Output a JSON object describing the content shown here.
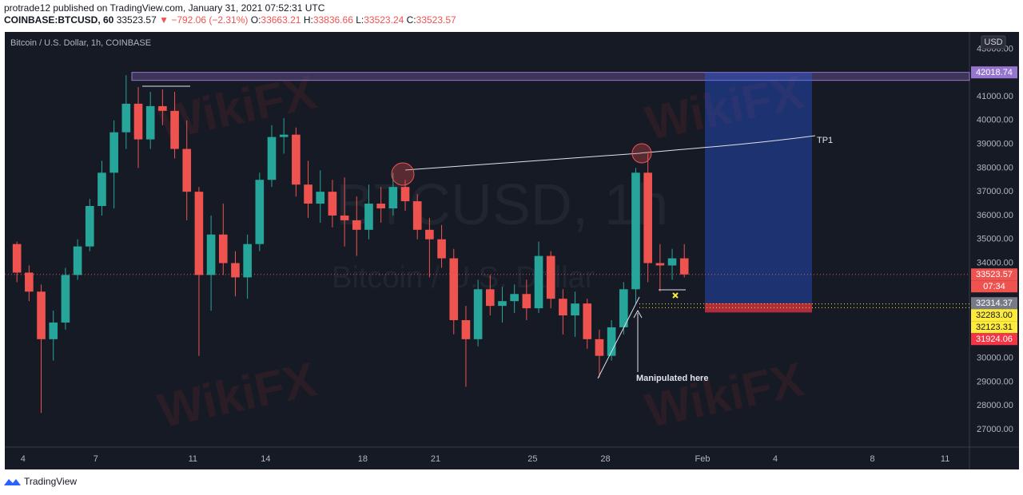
{
  "header": {
    "published": "protrade12 published on TradingView.com, January 31, 2021 07:52:31 UTC",
    "symbol": "COINBASE:BTCUSD, 60",
    "last": "33523.57",
    "change": "▼ −792.06 (−2.31%)",
    "ohlc": [
      {
        "label": "O:",
        "value": "33663.21"
      },
      {
        "label": "H:",
        "value": "33836.66"
      },
      {
        "label": "L:",
        "value": "33523.24"
      },
      {
        "label": "C:",
        "value": "33523.57"
      }
    ]
  },
  "footer": {
    "brand": "TradingView"
  },
  "watermarks": {
    "brand": "WikiFX",
    "symbol": "BTCUSD, 1h",
    "description": "Bitcoin / U.S. Dollar"
  },
  "chart_data": {
    "type": "candlestick",
    "title": "Bitcoin / U.S. Dollar, 1h, COINBASE",
    "currency": "USD",
    "up_color": "#26a69a",
    "down_color": "#ef5350",
    "xlim": [
      "Jan 3 06:00",
      "Feb 12 00:00"
    ],
    "xticks": [
      {
        "value": "Jan 4",
        "label": "4"
      },
      {
        "value": "Jan 7",
        "label": "7"
      },
      {
        "value": "Jan 11",
        "label": "11"
      },
      {
        "value": "Jan 14",
        "label": "14"
      },
      {
        "value": "Jan 18",
        "label": "18"
      },
      {
        "value": "Jan 21",
        "label": "21"
      },
      {
        "value": "Jan 25",
        "label": "25"
      },
      {
        "value": "Jan 28",
        "label": "28"
      },
      {
        "value": "Feb 1",
        "label": "Feb"
      },
      {
        "value": "Feb 4",
        "label": "4"
      },
      {
        "value": "Feb 8",
        "label": "8"
      },
      {
        "value": "Feb 11",
        "label": "11"
      }
    ],
    "ylim": [
      26263,
      43719
    ],
    "yticks": [
      {
        "value": 27000,
        "label": "27000.00"
      },
      {
        "value": 28000,
        "label": "28000.00"
      },
      {
        "value": 29000,
        "label": "29000.00"
      },
      {
        "value": 30000,
        "label": "30000.00"
      },
      {
        "value": 31000,
        "label": "31000.00"
      },
      {
        "value": 32000,
        "label": "32000.00"
      },
      {
        "value": 33000,
        "label": "33000.00"
      },
      {
        "value": 34000,
        "label": "34000.00"
      },
      {
        "value": 35000,
        "label": "35000.00"
      },
      {
        "value": 36000,
        "label": "36000.00"
      },
      {
        "value": 37000,
        "label": "37000.00"
      },
      {
        "value": 38000,
        "label": "38000.00"
      },
      {
        "value": 39000,
        "label": "39000.00"
      },
      {
        "value": 40000,
        "label": "40000.00"
      },
      {
        "value": 41000,
        "label": "41000.00"
      },
      {
        "value": 42000,
        "label": "42000.00"
      },
      {
        "value": 43000,
        "label": "43000.00"
      }
    ],
    "grid": true,
    "x": [
      "Jan 3 12:00",
      "Jan 4 00:00",
      "Jan 4 12:00",
      "Jan 5 00:00",
      "Jan 5 12:00",
      "Jan 6 00:00",
      "Jan 6 12:00",
      "Jan 7 00:00",
      "Jan 7 12:00",
      "Jan 8 00:00",
      "Jan 8 12:00",
      "Jan 9 00:00",
      "Jan 9 12:00",
      "Jan 10 00:00",
      "Jan 10 12:00",
      "Jan 11 00:00",
      "Jan 11 12:00",
      "Jan 12 00:00",
      "Jan 12 12:00",
      "Jan 13 00:00",
      "Jan 13 12:00",
      "Jan 14 00:00",
      "Jan 14 12:00",
      "Jan 15 00:00",
      "Jan 15 12:00",
      "Jan 16 00:00",
      "Jan 16 12:00",
      "Jan 17 00:00",
      "Jan 17 12:00",
      "Jan 18 00:00",
      "Jan 18 12:00",
      "Jan 19 00:00",
      "Jan 19 12:00",
      "Jan 20 00:00",
      "Jan 20 12:00",
      "Jan 21 00:00",
      "Jan 21 12:00",
      "Jan 22 00:00",
      "Jan 22 12:00",
      "Jan 23 00:00",
      "Jan 23 12:00",
      "Jan 24 00:00",
      "Jan 24 12:00",
      "Jan 25 00:00",
      "Jan 25 12:00",
      "Jan 26 00:00",
      "Jan 26 12:00",
      "Jan 27 00:00",
      "Jan 27 12:00",
      "Jan 28 00:00",
      "Jan 28 12:00",
      "Jan 29 00:00",
      "Jan 29 12:00",
      "Jan 30 00:00",
      "Jan 30 12:00",
      "Jan 31 00:00"
    ],
    "open": [
      34800,
      33600,
      32800,
      30800,
      31500,
      33500,
      34700,
      36400,
      37800,
      39500,
      40700,
      39200,
      40600,
      40400,
      38800,
      37000,
      33500,
      35200,
      34000,
      33400,
      34800,
      37500,
      39300,
      39400,
      37300,
      36500,
      37000,
      36000,
      35800,
      35400,
      36500,
      36300,
      37200,
      36600,
      35400,
      35000,
      34200,
      31600,
      30800,
      32900,
      32200,
      32400,
      32700,
      32100,
      34300,
      32500,
      31800,
      32300,
      30800,
      30100,
      31300,
      32900,
      37800,
      34000,
      33900,
      34200
    ],
    "high": [
      34900,
      33900,
      33100,
      32000,
      33800,
      35000,
      36700,
      38300,
      40000,
      41900,
      41400,
      41200,
      41300,
      41200,
      40000,
      37200,
      36000,
      36500,
      34500,
      35200,
      37800,
      39800,
      40100,
      39700,
      38300,
      37900,
      37500,
      37600,
      36800,
      37300,
      37200,
      37800,
      37500,
      36900,
      35900,
      35600,
      34600,
      32200,
      33300,
      33500,
      33000,
      33100,
      33300,
      34900,
      34500,
      32900,
      32800,
      32500,
      31200,
      31600,
      33200,
      38000,
      38600,
      34800,
      34600,
      34800
    ],
    "low": [
      33200,
      32400,
      27700,
      29900,
      31200,
      33300,
      34500,
      36000,
      36300,
      38800,
      38000,
      38800,
      39800,
      38400,
      35800,
      30100,
      32000,
      33500,
      32600,
      32500,
      34500,
      37200,
      38600,
      36800,
      35900,
      35700,
      35500,
      34700,
      34300,
      35000,
      35700,
      36000,
      36200,
      35000,
      33400,
      33800,
      31000,
      28800,
      30500,
      31800,
      31500,
      31900,
      31600,
      31900,
      32100,
      31000,
      30900,
      30400,
      29200,
      29900,
      31000,
      32300,
      33200,
      32800,
      33300,
      33400
    ],
    "close": [
      33600,
      32800,
      30800,
      31500,
      33500,
      34700,
      36400,
      37800,
      39500,
      40700,
      39200,
      40600,
      40400,
      38800,
      37000,
      33500,
      35200,
      34000,
      33400,
      34800,
      37500,
      39300,
      39400,
      37300,
      36500,
      37000,
      36000,
      35800,
      35400,
      36500,
      36300,
      37200,
      36600,
      35400,
      35000,
      34200,
      31600,
      30800,
      32900,
      32200,
      32400,
      32700,
      32100,
      34300,
      32500,
      31800,
      32300,
      30800,
      30100,
      31300,
      32900,
      37800,
      34000,
      33900,
      34200,
      33523.57
    ],
    "price_labels": [
      {
        "value": 42018.74,
        "color": "#9575cd",
        "text_color": "#ffffff"
      },
      {
        "value": 33523.57,
        "color": "#ef5350",
        "text_color": "#ffffff",
        "countdown": "07:34"
      },
      {
        "value": 32314.37,
        "color": "#787b86",
        "text_color": "#ffffff"
      },
      {
        "value": 32283,
        "label": "32283.00",
        "color": "#ffeb3b",
        "text_color": "#131722"
      },
      {
        "value": 32123.31,
        "color": "#ffeb3b",
        "text_color": "#131722"
      },
      {
        "value": 31924.06,
        "color": "#f23645",
        "text_color": "#ffffff"
      }
    ],
    "annotations": [
      "TP1",
      "Manipulated here"
    ]
  }
}
